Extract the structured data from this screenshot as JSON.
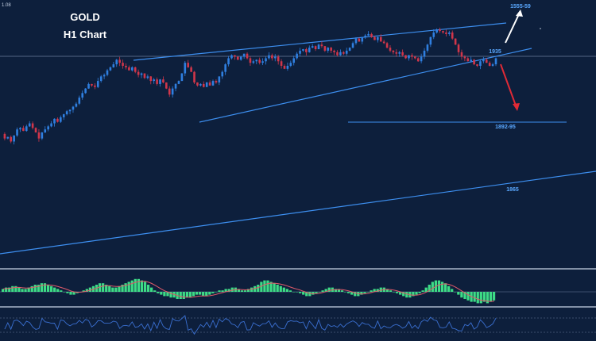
{
  "title": "GOLD",
  "subtitle": "H1 Chart",
  "top_left_value": "1.08",
  "colors": {
    "background": "#0d1f3c",
    "bull": "#2f7fe0",
    "bear": "#d0364a",
    "trendline": "#3d8ff0",
    "hist_up": "#3ddb86",
    "hist_down": "#3ddb86",
    "signal": "#e05a6a",
    "osc": "#3a6fd0",
    "level_text": "#5aa8ff",
    "white_arrow": "#ffffff",
    "red_arrow": "#e02a36"
  },
  "chart_data": {
    "type": "candlestick",
    "ohlc_close_path": [
      1882,
      1879,
      1880,
      1877,
      1881,
      1885,
      1886,
      1884,
      1887,
      1889,
      1886,
      1883,
      1879,
      1883,
      1885,
      1887,
      1889,
      1892,
      1890,
      1893,
      1895,
      1897,
      1898,
      1900,
      1902,
      1906,
      1909,
      1912,
      1915,
      1914,
      1913,
      1917,
      1920,
      1921,
      1924,
      1926,
      1928,
      1931,
      1929,
      1927,
      1926,
      1924,
      1926,
      1923,
      1921,
      1922,
      1919,
      1920,
      1917,
      1918,
      1915,
      1918,
      1916,
      1912,
      1908,
      1912,
      1915,
      1917,
      1922,
      1929,
      1926,
      1923,
      1916,
      1914,
      1915,
      1913,
      1916,
      1914,
      1917,
      1916,
      1920,
      1923,
      1928,
      1932,
      1934,
      1933,
      1931,
      1933,
      1935,
      1932,
      1929,
      1930,
      1931,
      1929,
      1930,
      1932,
      1934,
      1932,
      1933,
      1930,
      1927,
      1925,
      1927,
      1929,
      1932,
      1935,
      1937,
      1938,
      1936,
      1939,
      1940,
      1938,
      1941,
      1940,
      1937,
      1939,
      1937,
      1936,
      1934,
      1936,
      1935,
      1937,
      1939,
      1942,
      1945,
      1943,
      1946,
      1947,
      1948,
      1946,
      1944,
      1946,
      1943,
      1942,
      1939,
      1937,
      1936,
      1935,
      1936,
      1934,
      1932,
      1934,
      1933,
      1932,
      1930,
      1933,
      1937,
      1941,
      1946,
      1949,
      1951,
      1950,
      1949,
      1948,
      1949,
      1945,
      1941,
      1936,
      1933,
      1932,
      1930,
      1931,
      1928,
      1927,
      1930,
      1931,
      1929,
      1927,
      1928,
      1932
    ],
    "labels": [
      {
        "text": "1555-59"
      },
      {
        "text": "1935"
      },
      {
        "text": "1892-95"
      },
      {
        "text": "1865"
      }
    ],
    "ylim": [
      1850,
      1960
    ],
    "grid": false
  },
  "macd_hist": [
    2,
    3,
    3,
    4,
    4,
    3,
    2,
    2,
    3,
    4,
    5,
    5,
    6,
    6,
    5,
    4,
    3,
    2,
    1,
    0,
    -1,
    -2,
    -2,
    -1,
    0,
    1,
    2,
    3,
    4,
    5,
    6,
    6,
    5,
    4,
    3,
    3,
    4,
    5,
    6,
    7,
    8,
    9,
    9,
    8,
    7,
    5,
    3,
    1,
    -1,
    -2,
    -3,
    -3,
    -4,
    -4,
    -5,
    -5,
    -5,
    -4,
    -4,
    -3,
    -2,
    -2,
    -3,
    -3,
    -2,
    -1,
    0,
    1,
    1,
    2,
    2,
    3,
    3,
    2,
    1,
    1,
    2,
    3,
    4,
    5,
    7,
    8,
    8,
    7,
    6,
    5,
    4,
    3,
    2,
    1,
    0,
    0,
    -1,
    -2,
    -3,
    -3,
    -2,
    -1,
    0,
    1,
    2,
    3,
    3,
    2,
    2,
    1,
    0,
    -1,
    -2,
    -3,
    -3,
    -2,
    -1,
    0,
    1,
    2,
    2,
    3,
    3,
    2,
    1,
    0,
    -1,
    -2,
    -3,
    -4,
    -4,
    -3,
    -2,
    -1,
    1,
    3,
    5,
    7,
    8,
    8,
    7,
    6,
    4,
    2,
    0,
    -2,
    -4,
    -5,
    -6,
    -7,
    -7,
    -8,
    -8,
    -7,
    -8,
    -7,
    -6
  ]
}
